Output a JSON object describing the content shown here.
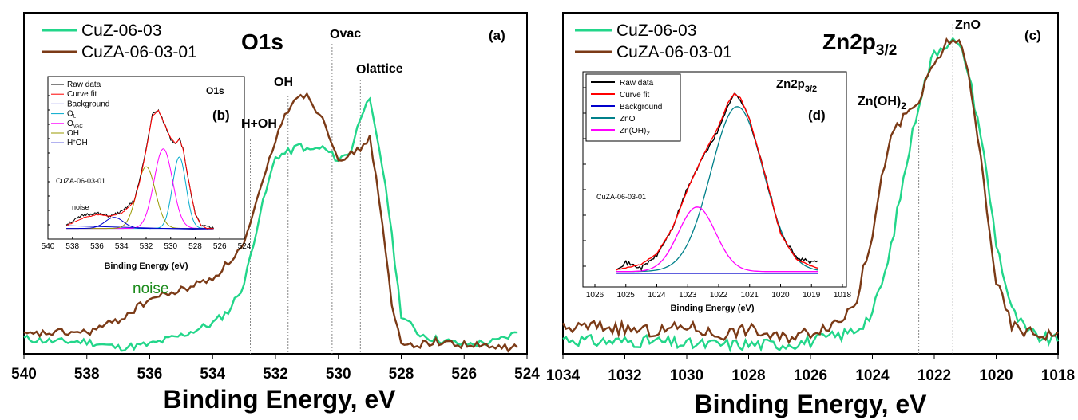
{
  "chart_data": [
    {
      "panel": "(a)",
      "type": "line",
      "title": "O1s",
      "xlabel": "Binding Energy, eV",
      "xlim": [
        540,
        524
      ],
      "xticks": [
        "540",
        "538",
        "536",
        "534",
        "532",
        "530",
        "528",
        "526",
        "524"
      ],
      "legend": {
        "placement": "top-left"
      },
      "series": [
        {
          "name": "CuZ-06-03",
          "color": "#22d68a",
          "x": [
            540,
            539,
            538,
            537,
            536,
            535,
            534,
            533.5,
            533,
            532.5,
            532,
            531.5,
            531.2,
            531,
            530.5,
            530,
            529.6,
            529.3,
            529.1,
            529,
            528.5,
            528,
            527.5,
            527,
            526,
            525,
            524.3
          ],
          "y": [
            0.04,
            0.03,
            0.03,
            0.01,
            0.02,
            0.05,
            0.09,
            0.13,
            0.22,
            0.45,
            0.64,
            0.66,
            0.68,
            0.66,
            0.67,
            0.63,
            0.66,
            0.77,
            0.83,
            0.82,
            0.55,
            0.12,
            0.06,
            0.04,
            0.02,
            0.03,
            0.06
          ]
        },
        {
          "name": "CuZA-06-03-01",
          "color": "#7b3a16",
          "x": [
            540,
            539,
            538,
            537,
            536,
            535,
            534,
            533.5,
            533,
            532.5,
            532,
            531.5,
            531.2,
            531,
            530.5,
            530,
            529.8,
            529.5,
            529.2,
            529,
            528.7,
            528.3,
            528,
            527.5,
            527,
            526,
            525,
            524.3
          ],
          "y": [
            0.05,
            0.06,
            0.06,
            0.1,
            0.17,
            0.2,
            0.24,
            0.29,
            0.35,
            0.52,
            0.7,
            0.82,
            0.85,
            0.84,
            0.77,
            0.64,
            0.62,
            0.66,
            0.67,
            0.71,
            0.5,
            0.15,
            0.02,
            0.02,
            0.03,
            0.02,
            0.01,
            0.01
          ]
        }
      ],
      "annotations": [
        {
          "text": "H+OH",
          "x": 532.8
        },
        {
          "text": "OH",
          "x": 531.6
        },
        {
          "text": "O",
          "sub": "vac",
          "x": 530.2
        },
        {
          "text": "O",
          "sub": "lattice",
          "x": 529.3
        },
        {
          "text": "noise",
          "color": "#1a8a1a"
        }
      ]
    },
    {
      "panel": "(b)",
      "type": "line",
      "title": "O1s",
      "sample": "CuZA-06-03-01",
      "xlabel": "Binding Energy (eV)",
      "xlim": [
        540,
        524
      ],
      "xticks": [
        "540",
        "538",
        "536",
        "534",
        "532",
        "530",
        "528",
        "526",
        "524"
      ],
      "legend": {
        "placement": "top-left"
      },
      "series": [
        {
          "name": "Raw data",
          "color": "#000000",
          "x": [
            538.5,
            537,
            536,
            535,
            534,
            533,
            532.5,
            532,
            531.5,
            531,
            530.5,
            530,
            529.6,
            529.3,
            529,
            528.5,
            528,
            527.5,
            527,
            526.5
          ],
          "y": [
            0.05,
            0.12,
            0.13,
            0.11,
            0.14,
            0.22,
            0.38,
            0.6,
            0.85,
            0.88,
            0.78,
            0.67,
            0.64,
            0.68,
            0.6,
            0.35,
            0.12,
            0.04,
            0.03,
            0.02
          ]
        },
        {
          "name": "Curve fit",
          "color": "#ff0000",
          "x": [
            538.5,
            537,
            536,
            535,
            534,
            533,
            532.5,
            532,
            531.5,
            531,
            530.5,
            530,
            529.6,
            529.3,
            529,
            528.5,
            528,
            527.5,
            527,
            526.5
          ],
          "y": [
            0.04,
            0.1,
            0.12,
            0.11,
            0.13,
            0.21,
            0.37,
            0.59,
            0.84,
            0.88,
            0.78,
            0.68,
            0.64,
            0.67,
            0.6,
            0.35,
            0.12,
            0.04,
            0.02,
            0.02
          ]
        },
        {
          "name": "Background",
          "color": "#0000cc"
        },
        {
          "name": "O",
          "sub": "L",
          "color": "#00aacc",
          "center": 529.3,
          "height": 0.52,
          "width": 0.55
        },
        {
          "name": "O",
          "sub": "VAC",
          "color": "#ff00ff",
          "center": 530.6,
          "height": 0.58,
          "width": 0.75
        },
        {
          "name": "OH",
          "color": "#999900",
          "center": 532.0,
          "height": 0.45,
          "width": 0.75
        },
        {
          "name": "H",
          "sup": "+",
          "name2": "OH",
          "color": "#0000cc",
          "center": 534.6,
          "height": 0.08,
          "width": 0.75
        }
      ],
      "annotations": [
        {
          "text": "noise"
        }
      ]
    },
    {
      "panel": "(c)",
      "type": "line",
      "title": "Zn2p",
      "title_sub": "3/2",
      "xlabel": "Binding Energy, eV",
      "xlim": [
        1034,
        1018
      ],
      "xticks": [
        "1034",
        "1032",
        "1030",
        "1028",
        "1026",
        "1024",
        "1022",
        "1020",
        "1018"
      ],
      "legend": {
        "placement": "top-left"
      },
      "series": [
        {
          "name": "CuZ-06-03",
          "color": "#22d68a",
          "x": [
            1034,
            1033,
            1032,
            1031,
            1030,
            1029,
            1028,
            1027,
            1026,
            1025,
            1024.5,
            1024,
            1023.5,
            1023,
            1022.5,
            1022,
            1021.5,
            1021.3,
            1021,
            1020.5,
            1020,
            1019.5,
            1019,
            1018.5,
            1018
          ],
          "y": [
            0.04,
            0.03,
            0.03,
            0.03,
            0.02,
            0.02,
            0.02,
            0.02,
            0.03,
            0.05,
            0.07,
            0.12,
            0.28,
            0.55,
            0.8,
            0.96,
            1.0,
            0.99,
            0.94,
            0.7,
            0.35,
            0.13,
            0.06,
            0.04,
            0.03
          ]
        },
        {
          "name": "CuZA-06-03-01",
          "color": "#7b3a16",
          "x": [
            1034,
            1033,
            1032,
            1031,
            1030,
            1029,
            1028,
            1027,
            1026,
            1025,
            1024.5,
            1024,
            1023.5,
            1023,
            1022.5,
            1022,
            1021.5,
            1021.3,
            1021,
            1020.5,
            1020,
            1019.5,
            1019,
            1018.5,
            1018
          ],
          "y": [
            0.07,
            0.08,
            0.07,
            0.06,
            0.08,
            0.05,
            0.07,
            0.04,
            0.06,
            0.1,
            0.17,
            0.38,
            0.66,
            0.75,
            0.8,
            0.92,
            1.0,
            1.0,
            0.95,
            0.62,
            0.22,
            0.08,
            0.06,
            0.05,
            0.06
          ]
        }
      ],
      "annotations": [
        {
          "text": "ZnO",
          "x": 1021.4
        },
        {
          "text": "Zn(OH)",
          "sub": "2",
          "x": 1022.5
        }
      ]
    },
    {
      "panel": "(d)",
      "type": "line",
      "title": "Zn2p",
      "title_sub": "3/2",
      "sample": "CuZA-06-03-01",
      "xlabel": "Binding Energy (eV)",
      "xlim": [
        1026,
        1018
      ],
      "xticks": [
        "1026",
        "1025",
        "1024",
        "1023",
        "1022",
        "1021",
        "1020",
        "1019",
        "1018"
      ],
      "legend": {
        "placement": "top-left"
      },
      "series": [
        {
          "name": "Raw data",
          "color": "#000000",
          "x": [
            1025.3,
            1025,
            1024.5,
            1024,
            1023.5,
            1023,
            1022.5,
            1022,
            1021.7,
            1021.5,
            1021.3,
            1021,
            1020.5,
            1020,
            1019.5,
            1019,
            1018.8
          ],
          "y": [
            0.03,
            0.06,
            0.03,
            0.1,
            0.25,
            0.48,
            0.65,
            0.8,
            0.94,
            1.0,
            0.97,
            0.86,
            0.55,
            0.22,
            0.09,
            0.06,
            0.07
          ]
        },
        {
          "name": "Curve fit",
          "color": "#ff0000",
          "x": [
            1025.3,
            1025,
            1024.5,
            1024,
            1023.5,
            1023,
            1022.5,
            1022,
            1021.7,
            1021.5,
            1021.3,
            1021,
            1020.5,
            1020,
            1019.5,
            1019,
            1018.8
          ],
          "y": [
            0.02,
            0.03,
            0.05,
            0.11,
            0.25,
            0.47,
            0.66,
            0.82,
            0.95,
            1.0,
            0.98,
            0.86,
            0.55,
            0.22,
            0.08,
            0.04,
            0.03
          ]
        },
        {
          "name": "Background",
          "color": "#0000cc"
        },
        {
          "name": "ZnO",
          "color": "#00808a",
          "center": 1021.4,
          "height": 0.92,
          "width": 0.85
        },
        {
          "name": "Zn(OH)",
          "sub": "2",
          "color": "#ff00ff",
          "center": 1022.7,
          "height": 0.36,
          "width": 0.6
        }
      ]
    }
  ],
  "labels": {
    "a": "(a)",
    "b": "(b)",
    "c": "(c)",
    "d": "(d)",
    "o1s": "O1s",
    "zn": "Zn2p",
    "zn_sub": "3/2",
    "noise": "noise",
    "sample": "CuZA-06-03-01"
  }
}
